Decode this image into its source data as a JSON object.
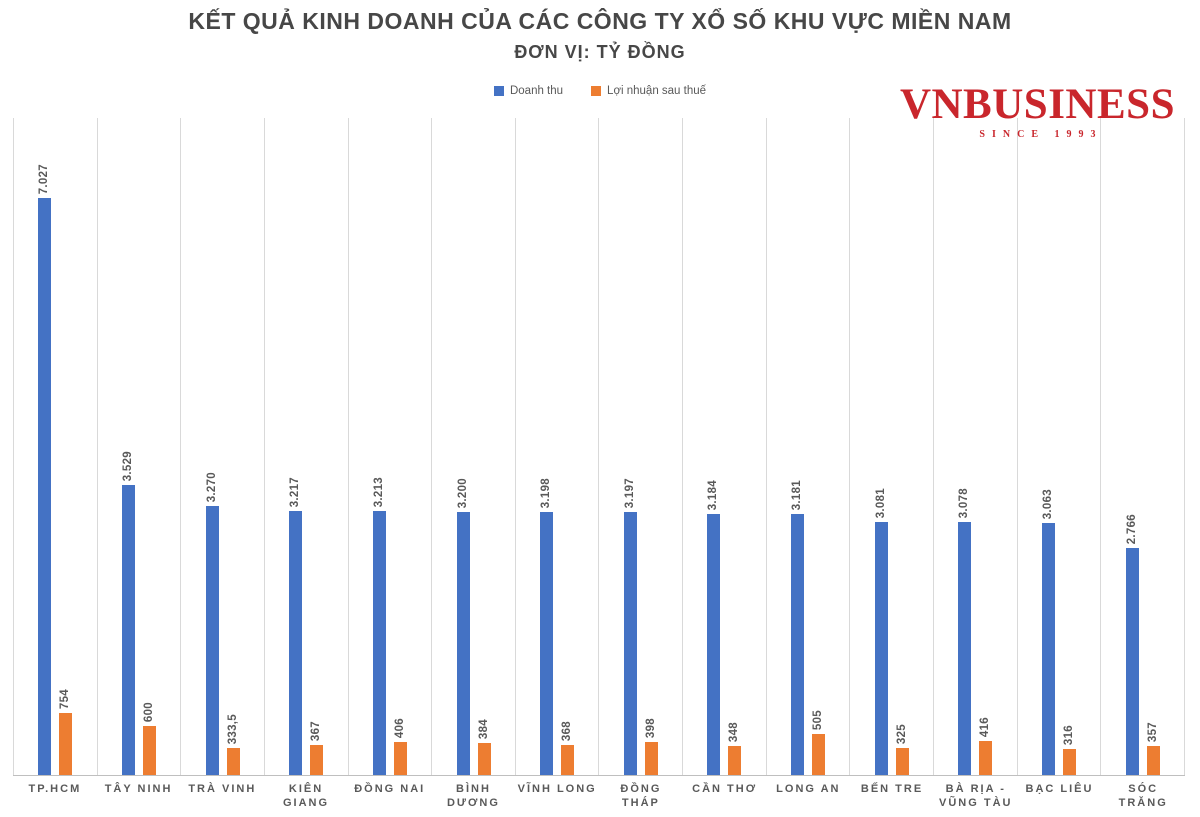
{
  "logo": {
    "name": "VNBUSINESS",
    "tagline": "SINCE 1993",
    "color": "#c9262c"
  },
  "chart_data": {
    "type": "bar",
    "title": "KẾT QUẢ KINH DOANH CỦA CÁC CÔNG TY XỔ SỐ KHU VỰC MIỀN NAM",
    "subtitle": "ĐƠN VỊ: TỶ ĐỒNG",
    "unit": "tỷ đồng",
    "categories": [
      "TP.HCM",
      "TÂY NINH",
      "TRÀ VINH",
      "KIÊN GIANG",
      "ĐỒNG NAI",
      "BÌNH\nDƯƠNG",
      "VĨNH LONG",
      "ĐỒNG THÁP",
      "CẦN THƠ",
      "LONG AN",
      "BẾN TRE",
      "BÀ RỊA -\nVŨNG TÀU",
      "BẠC LIÊU",
      "SÓC TRĂNG"
    ],
    "series": [
      {
        "name": "Doanh thu",
        "color": "#4472c4",
        "values": [
          7027,
          3529,
          3270,
          3217,
          3213,
          3200,
          3198,
          3197,
          3184,
          3181,
          3081,
          3078,
          3063,
          2766
        ],
        "labels": [
          "7.027",
          "3.529",
          "3.270",
          "3.217",
          "3.213",
          "3.200",
          "3.198",
          "3.197",
          "3.184",
          "3.181",
          "3.081",
          "3.078",
          "3.063",
          "2.766"
        ]
      },
      {
        "name": "Lợi nhuận sau thuế",
        "color": "#ed7d31",
        "values": [
          754,
          600,
          333.5,
          367,
          406,
          384,
          368,
          398,
          348,
          505,
          325,
          416,
          316,
          357
        ],
        "labels": [
          "754",
          "600",
          "333,5",
          "367",
          "406",
          "384",
          "368",
          "398",
          "348",
          "505",
          "325",
          "416",
          "316",
          "357"
        ]
      }
    ],
    "ylim": [
      0,
      8000
    ],
    "grid": "vertical category separators only",
    "legend_position": "top-center",
    "value_label_style": "rotated 90°, above bars",
    "gridline_color": "#d9d9d9",
    "axis_line_color": "#bfbfbf",
    "text_color": "#595959",
    "title_color": "#474747"
  }
}
